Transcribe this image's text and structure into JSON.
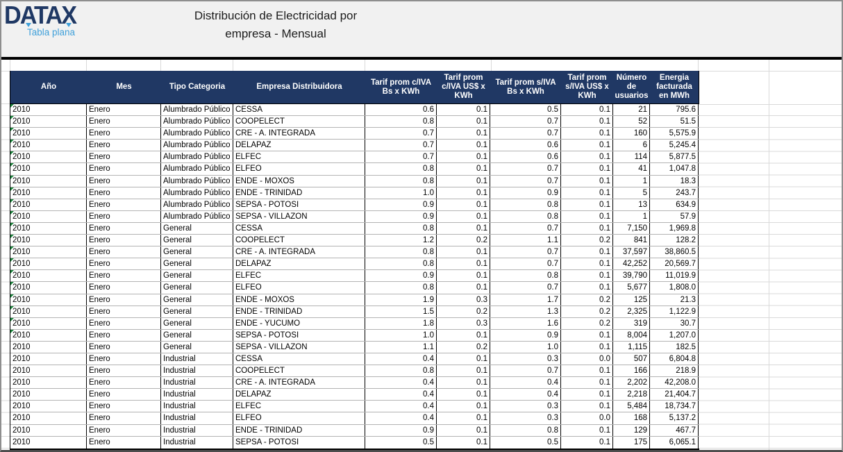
{
  "header": {
    "logo_text": "DATAX",
    "logo_subtitle": "Tabla plana",
    "title_line1": "Distribución de Electricidad por",
    "title_line2": "empresa - Mensual"
  },
  "colors": {
    "table_header_bg": "#203864",
    "logo_navy": "#1f3864",
    "accent_blue": "#3fa0da",
    "error_indicator_green": "#188038"
  },
  "table": {
    "columns": [
      "Año",
      "Mes",
      "Tipo Categoria",
      "Empresa Distribuidora",
      "Tarif prom c/IVA Bs x KWh",
      "Tarif prom c/IVA US$ x KWh",
      "Tarif prom s/IVA Bs x KWh",
      "Tarif prom s/IVA US$ x KWh",
      "Número de usuarios",
      "Energia facturada en MWh"
    ],
    "rows": [
      {
        "flag": true,
        "cells": [
          "2010",
          "Enero",
          "Alumbrado Público",
          "CESSA",
          "0.6",
          "0.1",
          "0.5",
          "0.1",
          "21",
          "795.6"
        ]
      },
      {
        "flag": true,
        "cells": [
          "2010",
          "Enero",
          "Alumbrado Público",
          "COOPELECT",
          "0.8",
          "0.1",
          "0.7",
          "0.1",
          "52",
          "51.5"
        ]
      },
      {
        "flag": true,
        "cells": [
          "2010",
          "Enero",
          "Alumbrado Público",
          "CRE - A. INTEGRADA",
          "0.7",
          "0.1",
          "0.7",
          "0.1",
          "160",
          "5,575.9"
        ]
      },
      {
        "flag": true,
        "cells": [
          "2010",
          "Enero",
          "Alumbrado Público",
          "DELAPAZ",
          "0.7",
          "0.1",
          "0.6",
          "0.1",
          "6",
          "5,245.4"
        ]
      },
      {
        "flag": true,
        "cells": [
          "2010",
          "Enero",
          "Alumbrado Público",
          "ELFEC",
          "0.7",
          "0.1",
          "0.6",
          "0.1",
          "114",
          "5,877.5"
        ]
      },
      {
        "flag": true,
        "cells": [
          "2010",
          "Enero",
          "Alumbrado Público",
          "ELFEO",
          "0.8",
          "0.1",
          "0.7",
          "0.1",
          "41",
          "1,047.8"
        ]
      },
      {
        "flag": true,
        "cells": [
          "2010",
          "Enero",
          "Alumbrado Público",
          "ENDE - MOXOS",
          "0.8",
          "0.1",
          "0.7",
          "0.1",
          "1",
          "18.3"
        ]
      },
      {
        "flag": true,
        "cells": [
          "2010",
          "Enero",
          "Alumbrado Público",
          "ENDE - TRINIDAD",
          "1.0",
          "0.1",
          "0.9",
          "0.1",
          "5",
          "243.7"
        ]
      },
      {
        "flag": true,
        "cells": [
          "2010",
          "Enero",
          "Alumbrado Público",
          "SEPSA - POTOSI",
          "0.9",
          "0.1",
          "0.8",
          "0.1",
          "13",
          "634.9"
        ]
      },
      {
        "flag": true,
        "cells": [
          "2010",
          "Enero",
          "Alumbrado Público",
          "SEPSA - VILLAZON",
          "0.9",
          "0.1",
          "0.8",
          "0.1",
          "1",
          "57.9"
        ]
      },
      {
        "flag": true,
        "cells": [
          "2010",
          "Enero",
          "General",
          "CESSA",
          "0.8",
          "0.1",
          "0.7",
          "0.1",
          "7,150",
          "1,969.8"
        ]
      },
      {
        "flag": true,
        "cells": [
          "2010",
          "Enero",
          "General",
          "COOPELECT",
          "1.2",
          "0.2",
          "1.1",
          "0.2",
          "841",
          "128.2"
        ]
      },
      {
        "flag": true,
        "cells": [
          "2010",
          "Enero",
          "General",
          "CRE - A. INTEGRADA",
          "0.8",
          "0.1",
          "0.7",
          "0.1",
          "37,597",
          "38,860.5"
        ]
      },
      {
        "flag": true,
        "cells": [
          "2010",
          "Enero",
          "General",
          "DELAPAZ",
          "0.8",
          "0.1",
          "0.7",
          "0.1",
          "42,252",
          "20,569.7"
        ]
      },
      {
        "flag": true,
        "cells": [
          "2010",
          "Enero",
          "General",
          "ELFEC",
          "0.9",
          "0.1",
          "0.8",
          "0.1",
          "39,790",
          "11,019.9"
        ]
      },
      {
        "flag": true,
        "cells": [
          "2010",
          "Enero",
          "General",
          "ELFEO",
          "0.8",
          "0.1",
          "0.7",
          "0.1",
          "5,677",
          "1,808.0"
        ]
      },
      {
        "flag": true,
        "cells": [
          "2010",
          "Enero",
          "General",
          "ENDE - MOXOS",
          "1.9",
          "0.3",
          "1.7",
          "0.2",
          "125",
          "21.3"
        ]
      },
      {
        "flag": true,
        "cells": [
          "2010",
          "Enero",
          "General",
          "ENDE - TRINIDAD",
          "1.5",
          "0.2",
          "1.3",
          "0.2",
          "2,325",
          "1,122.9"
        ]
      },
      {
        "flag": true,
        "cells": [
          "2010",
          "Enero",
          "General",
          "ENDE - YUCUMO",
          "1.8",
          "0.3",
          "1.6",
          "0.2",
          "319",
          "30.7"
        ]
      },
      {
        "flag": true,
        "cells": [
          "2010",
          "Enero",
          "General",
          "SEPSA - POTOSI",
          "1.0",
          "0.1",
          "0.9",
          "0.1",
          "8,004",
          "1,207.0"
        ]
      },
      {
        "flag": false,
        "cells": [
          "2010",
          "Enero",
          "General",
          "SEPSA - VILLAZON",
          "1.1",
          "0.2",
          "1.0",
          "0.1",
          "1,115",
          "182.5"
        ]
      },
      {
        "flag": false,
        "cells": [
          "2010",
          "Enero",
          "Industrial",
          "CESSA",
          "0.4",
          "0.1",
          "0.3",
          "0.0",
          "507",
          "6,804.8"
        ]
      },
      {
        "flag": false,
        "cells": [
          "2010",
          "Enero",
          "Industrial",
          "COOPELECT",
          "0.8",
          "0.1",
          "0.7",
          "0.1",
          "166",
          "218.9"
        ]
      },
      {
        "flag": false,
        "cells": [
          "2010",
          "Enero",
          "Industrial",
          "CRE - A. INTEGRADA",
          "0.4",
          "0.1",
          "0.4",
          "0.1",
          "2,202",
          "42,208.0"
        ]
      },
      {
        "flag": false,
        "cells": [
          "2010",
          "Enero",
          "Industrial",
          "DELAPAZ",
          "0.4",
          "0.1",
          "0.4",
          "0.1",
          "2,218",
          "21,404.7"
        ]
      },
      {
        "flag": false,
        "cells": [
          "2010",
          "Enero",
          "Industrial",
          "ELFEC",
          "0.4",
          "0.1",
          "0.3",
          "0.1",
          "5,484",
          "18,734.7"
        ]
      },
      {
        "flag": false,
        "cells": [
          "2010",
          "Enero",
          "Industrial",
          "ELFEO",
          "0.4",
          "0.1",
          "0.3",
          "0.0",
          "168",
          "5,137.2"
        ]
      },
      {
        "flag": false,
        "cells": [
          "2010",
          "Enero",
          "Industrial",
          "ENDE - TRINIDAD",
          "0.9",
          "0.1",
          "0.8",
          "0.1",
          "129",
          "467.7"
        ]
      },
      {
        "flag": false,
        "cells": [
          "2010",
          "Enero",
          "Industrial",
          "SEPSA - POTOSI",
          "0.5",
          "0.1",
          "0.5",
          "0.1",
          "175",
          "6,065.1"
        ]
      }
    ]
  }
}
